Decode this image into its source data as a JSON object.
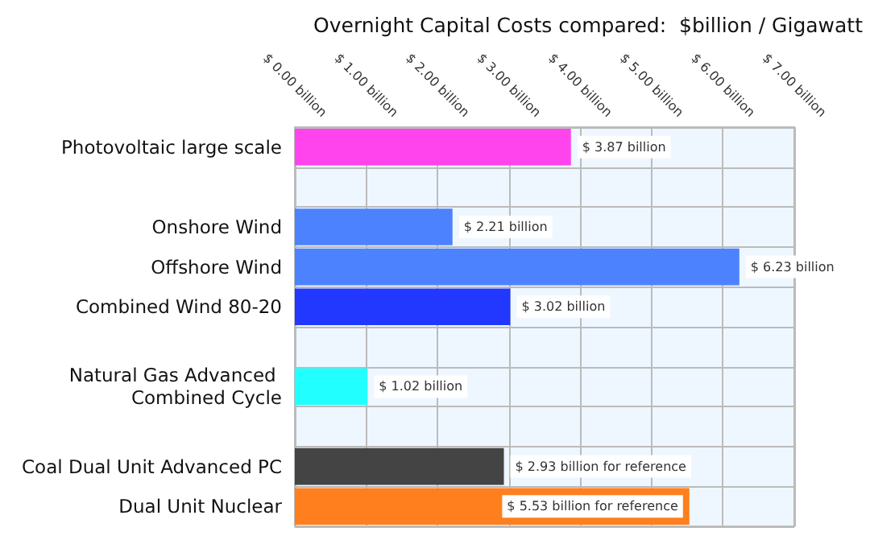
{
  "chart_data": {
    "type": "bar",
    "orientation": "horizontal",
    "title": "Overnight Capital Costs compared:  $billion / Gigawatt",
    "categories": [
      "Photovoltaic large scale",
      null,
      "Onshore Wind",
      "Offshore Wind",
      "Combined Wind 80-20",
      null,
      "Natural Gas Advanced Combined Cycle",
      null,
      "Coal Dual Unit Advanced PC",
      "Dual Unit Nuclear"
    ],
    "values": [
      3.87,
      null,
      2.21,
      6.23,
      3.02,
      null,
      1.02,
      null,
      2.93,
      5.53
    ],
    "colors": [
      "#ff44ee",
      null,
      "#4d82ff",
      "#4d82ff",
      "#2238ff",
      null,
      "#22ffff",
      null,
      "#444444",
      "#ff7f1e"
    ],
    "value_labels": [
      "$ 3.87 billion",
      null,
      "$ 2.21 billion",
      "$ 6.23 billion",
      "$ 3.02 billion",
      null,
      "$ 1.02 billion",
      null,
      "$ 2.93 billion for reference",
      "$ 5.53 billion for reference"
    ],
    "xlim": [
      0,
      7
    ],
    "xticks": [
      {
        "value": 0,
        "label": "$ 0.00 billion"
      },
      {
        "value": 1,
        "label": "$ 1.00 billion"
      },
      {
        "value": 2,
        "label": "$ 2.00 billion"
      },
      {
        "value": 3,
        "label": "$ 3.00 billion"
      },
      {
        "value": 4,
        "label": "$ 4.00 billion"
      },
      {
        "value": 5,
        "label": "$ 5.00 billion"
      },
      {
        "value": 6,
        "label": "$ 6.00 billion"
      },
      {
        "value": 7,
        "label": "$ 7.00 billion"
      }
    ],
    "grid": true
  }
}
